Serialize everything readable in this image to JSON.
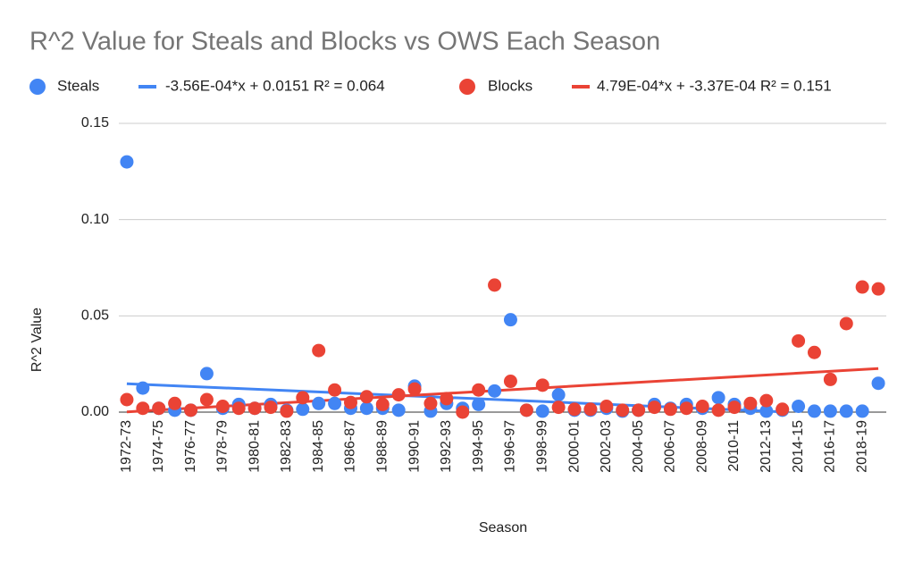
{
  "chart_data": {
    "type": "scatter",
    "title": "R^2 Value for Steals and Blocks vs OWS Each Season",
    "x_label": "Season",
    "y_label": "R^2 Value",
    "categories": [
      "1972-73",
      null,
      "1974-75",
      null,
      "1976-77",
      null,
      "1978-79",
      null,
      "1980-81",
      null,
      "1982-83",
      null,
      "1984-85",
      null,
      "1986-87",
      null,
      "1988-89",
      null,
      "1990-91",
      null,
      "1992-93",
      null,
      "1994-95",
      null,
      "1996-97",
      null,
      "1998-99",
      null,
      "2000-01",
      null,
      "2002-03",
      null,
      "2004-05",
      null,
      "2006-07",
      null,
      "2008-09",
      null,
      "2010-11",
      null,
      "2012-13",
      null,
      "2014-15",
      null,
      "2016-17",
      null,
      "2018-19",
      null
    ],
    "series": [
      {
        "name": "Steals",
        "color": "#4285f4",
        "values": [
          0.13,
          0.0125,
          0.002,
          0.001,
          0.001,
          0.02,
          0.002,
          0.004,
          0.002,
          0.004,
          0.001,
          0.0015,
          0.0045,
          0.0045,
          0.002,
          0.002,
          0.002,
          0.001,
          0.0135,
          0.0005,
          0.0045,
          0.002,
          0.004,
          0.011,
          0.048,
          0.001,
          0.0005,
          0.009,
          0.001,
          0.001,
          0.002,
          0.0005,
          0.001,
          0.004,
          0.002,
          0.004,
          0.002,
          0.0075,
          0.004,
          0.002,
          0.0005,
          0.001,
          0.003,
          0.0005,
          0.0005,
          0.0005,
          0.0005,
          0.015
        ],
        "trendline": {
          "slope": -0.000356,
          "intercept": 0.0151,
          "label": "-3.56E-04*x + 0.0151 R² = 0.064"
        }
      },
      {
        "name": "Blocks",
        "color": "#ea4335",
        "values": [
          0.0065,
          0.002,
          0.002,
          0.0045,
          0.001,
          0.0065,
          0.003,
          0.002,
          0.002,
          0.0025,
          0.0005,
          0.0075,
          0.032,
          0.0115,
          0.005,
          0.008,
          0.004,
          0.009,
          0.012,
          0.0045,
          0.007,
          0.0,
          0.0115,
          0.066,
          0.016,
          0.001,
          0.014,
          0.0025,
          0.0015,
          0.0015,
          0.003,
          0.001,
          0.001,
          0.0025,
          0.0015,
          0.002,
          0.003,
          0.001,
          0.0025,
          0.0045,
          0.006,
          0.0015,
          0.037,
          0.031,
          0.017,
          0.046,
          0.065,
          0.064
        ],
        "trendline": {
          "slope": 0.000479,
          "intercept": -0.000337,
          "label": "4.79E-04*x + -3.37E-04 R² = 0.151"
        }
      }
    ],
    "ylim": [
      0,
      0.15
    ],
    "yticks": [
      {
        "value": 0,
        "label": "0.00"
      },
      0.05,
      {
        "value": 0.1,
        "label": "0.10"
      },
      0.15
    ],
    "grid": true
  }
}
